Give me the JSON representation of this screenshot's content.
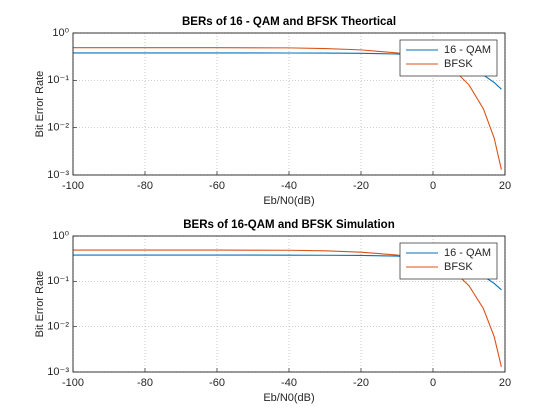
{
  "chart_data": [
    {
      "type": "line",
      "title": "BERs of 16 - QAM and BFSK Theortical",
      "x_label": "Eb/N0(dB)",
      "y_label": "Bit Error Rate",
      "x": [
        -100,
        -80,
        -60,
        -40,
        -30,
        -20,
        -10,
        -5,
        0,
        5,
        10,
        14,
        17,
        19
      ],
      "series": [
        {
          "name": "16 - QAM",
          "color": "#0072bd",
          "values": [
            0.38,
            0.38,
            0.38,
            0.378,
            0.376,
            0.372,
            0.36,
            0.34,
            0.3,
            0.25,
            0.18,
            0.13,
            0.09,
            0.065
          ]
        },
        {
          "name": "BFSK",
          "color": "#d95319",
          "values": [
            0.49,
            0.49,
            0.49,
            0.485,
            0.47,
            0.44,
            0.38,
            0.34,
            0.28,
            0.19,
            0.08,
            0.025,
            0.006,
            0.0013
          ]
        }
      ],
      "xlim": [
        -100,
        20
      ],
      "xticks": [
        -100,
        -80,
        -60,
        -40,
        -20,
        0,
        20
      ],
      "ylim": [
        0.001,
        1
      ],
      "log_y": true,
      "yticks": [
        {
          "value": 1,
          "label": "10⁰"
        },
        {
          "value": 0.1,
          "label": "10⁻¹"
        },
        {
          "value": 0.01,
          "label": "10⁻²"
        },
        {
          "value": 0.001,
          "label": "10⁻³"
        }
      ],
      "grid": true,
      "legend": "northeast"
    },
    {
      "type": "line",
      "title": "BERs of 16-QAM and BFSK Simulation",
      "x_label": "Eb/N0(dB)",
      "y_label": "Bit Error Rate",
      "x": [
        -100,
        -80,
        -60,
        -40,
        -30,
        -20,
        -10,
        -5,
        0,
        5,
        10,
        14,
        17,
        19
      ],
      "series": [
        {
          "name": "16 - QAM",
          "color": "#0072bd",
          "values": [
            0.38,
            0.38,
            0.38,
            0.378,
            0.376,
            0.372,
            0.36,
            0.34,
            0.3,
            0.25,
            0.18,
            0.13,
            0.09,
            0.065
          ]
        },
        {
          "name": "BFSK",
          "color": "#d95319",
          "values": [
            0.49,
            0.49,
            0.49,
            0.485,
            0.47,
            0.44,
            0.38,
            0.34,
            0.28,
            0.19,
            0.08,
            0.025,
            0.006,
            0.0013
          ]
        }
      ],
      "xlim": [
        -100,
        20
      ],
      "xticks": [
        -100,
        -80,
        -60,
        -40,
        -20,
        0,
        20
      ],
      "ylim": [
        0.001,
        1
      ],
      "log_y": true,
      "yticks": [
        {
          "value": 1,
          "label": "10⁰"
        },
        {
          "value": 0.1,
          "label": "10⁻¹"
        },
        {
          "value": 0.01,
          "label": "10⁻²"
        },
        {
          "value": 0.001,
          "label": "10⁻³"
        }
      ],
      "grid": true,
      "legend": "northeast"
    }
  ]
}
